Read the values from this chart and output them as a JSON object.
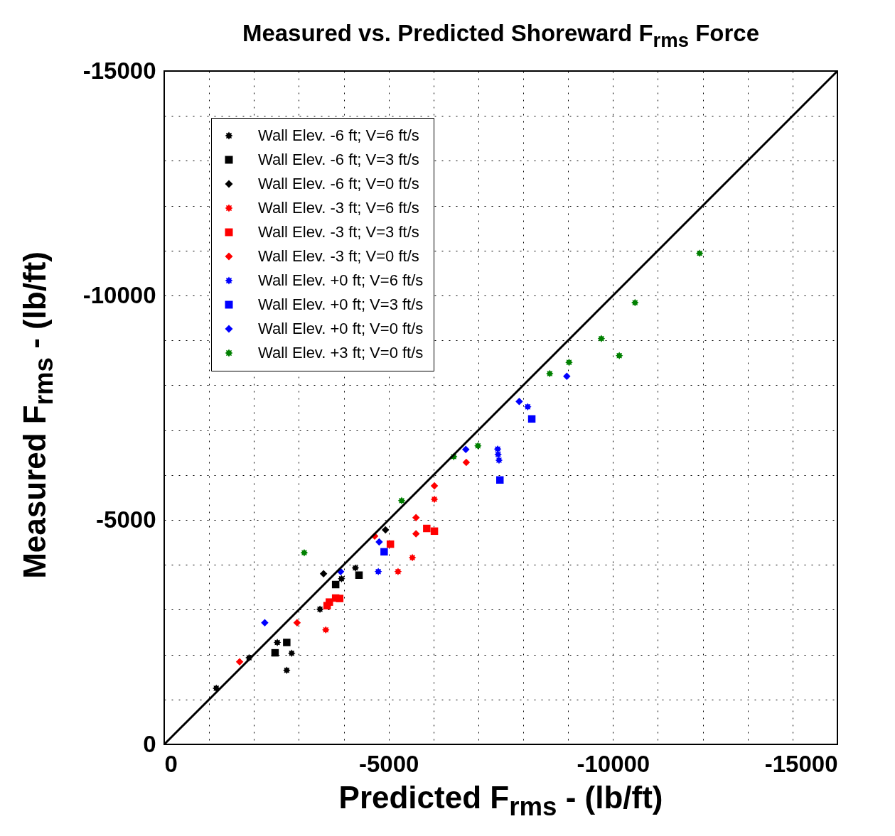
{
  "chart_data": {
    "type": "scatter",
    "title": "Measured vs. Predicted Shoreward F$_{rms}$ Force",
    "xlabel": "Predicted F$_{rms}$ - (lb/ft)",
    "ylabel": "Measured F$_{rms}$ - (lb/ft)",
    "xlim": [
      0,
      -15000
    ],
    "ylim": [
      0,
      -15000
    ],
    "xticks": [
      0,
      {
        "value": -1000,
        "label": null
      },
      {
        "value": -2000,
        "label": null
      },
      {
        "value": -3000,
        "label": null
      },
      {
        "value": -4000,
        "label": null
      },
      -5000,
      {
        "value": -6000,
        "label": null
      },
      {
        "value": -7000,
        "label": null
      },
      {
        "value": -8000,
        "label": null
      },
      {
        "value": -9000,
        "label": null
      },
      -10000,
      {
        "value": -11000,
        "label": null
      },
      {
        "value": -12000,
        "label": null
      },
      {
        "value": -13000,
        "label": null
      },
      {
        "value": -14000,
        "label": null
      },
      -15000
    ],
    "yticks": [
      0,
      {
        "value": -1000,
        "label": null
      },
      {
        "value": -2000,
        "label": null
      },
      {
        "value": -3000,
        "label": null
      },
      {
        "value": -4000,
        "label": null
      },
      -5000,
      {
        "value": -6000,
        "label": null
      },
      {
        "value": -7000,
        "label": null
      },
      {
        "value": -8000,
        "label": null
      },
      {
        "value": -9000,
        "label": null
      },
      -10000,
      {
        "value": -11000,
        "label": null
      },
      {
        "value": -12000,
        "label": null
      },
      {
        "value": -13000,
        "label": null
      },
      {
        "value": -14000,
        "label": null
      },
      -15000
    ],
    "grid": true,
    "legend": "top left",
    "series": [
      {
        "name": "Wall Elev. -6 ft; V=6 ft/s",
        "color": "#000000",
        "marker": "star",
        "x": [
          -1160,
          -1890,
          -2730,
          -2840,
          -2520,
          -3470,
          -4260,
          -3950
        ],
        "values": [
          -1250,
          -1930,
          -1650,
          -2030,
          -2270,
          -3010,
          -3930,
          -3690
        ]
      },
      {
        "name": "Wall Elev. -6 ft; V=3 ft/s",
        "color": "#000000",
        "marker": "square",
        "x": [
          -2470,
          -2730,
          -3820,
          -4340
        ],
        "values": [
          -2040,
          -2270,
          -3560,
          -3770
        ]
      },
      {
        "name": "Wall Elev. -6 ft; V=0 ft/s",
        "color": "#000000",
        "marker": "diamond",
        "x": [
          -3550,
          -4930
        ],
        "values": [
          -3800,
          -4780
        ]
      },
      {
        "name": "Wall Elev. -3 ft; V=6 ft/s",
        "color": "#ff0000",
        "marker": "star",
        "x": [
          -3600,
          -5210,
          -5530,
          -6020
        ],
        "values": [
          -2550,
          -3850,
          -4160,
          -5460
        ]
      },
      {
        "name": "Wall Elev. -3 ft; V=3 ft/s",
        "color": "#ff0000",
        "marker": "square",
        "x": [
          -3630,
          -3680,
          -3820,
          -3910,
          -5040,
          -5850,
          -6020
        ],
        "values": [
          -3090,
          -3170,
          -3260,
          -3250,
          -4460,
          -4810,
          -4750
        ]
      },
      {
        "name": "Wall Elev. -3 ft; V=0 ft/s",
        "color": "#ff0000",
        "marker": "diamond",
        "x": [
          -1680,
          -2960,
          -4690,
          -5610,
          -5610,
          -6020,
          -6730
        ],
        "values": [
          -1840,
          -2710,
          -4640,
          -5050,
          -4690,
          -5760,
          -6280
        ]
      },
      {
        "name": "Wall Elev. +0 ft; V=6 ft/s",
        "color": "#0000ff",
        "marker": "star",
        "x": [
          -4770,
          -7430,
          -7440,
          -7460,
          -8100
        ],
        "values": [
          -3850,
          -6580,
          -6460,
          -6330,
          -7520
        ]
      },
      {
        "name": "Wall Elev. +0 ft; V=3 ft/s",
        "color": "#0000ff",
        "marker": "square",
        "x": [
          -4900,
          -7480,
          -8190
        ],
        "values": [
          -4290,
          -5890,
          -7250
        ]
      },
      {
        "name": "Wall Elev. +0 ft; V=0 ft/s",
        "color": "#0000ff",
        "marker": "diamond",
        "x": [
          -2240,
          -3930,
          -4790,
          -6720,
          -7910,
          -8970
        ],
        "values": [
          -2710,
          -3850,
          -4510,
          -6570,
          -7640,
          -8200
        ]
      },
      {
        "name": "Wall Elev. +3 ft; V=0 ft/s",
        "color": "#008000",
        "marker": "star",
        "x": [
          -3120,
          -5290,
          -6450,
          -6990,
          -8590,
          -9020,
          -9740,
          -10140,
          -10490,
          -11930
        ],
        "values": [
          -4270,
          -5430,
          -6410,
          -6650,
          -8260,
          -8510,
          -9040,
          -8660,
          -9840,
          -10940
        ]
      },
      {
        "type": "line",
        "color": "#000000",
        "line_style": "solid",
        "x": [
          0,
          -15000
        ],
        "values": [
          0,
          -15000
        ]
      }
    ]
  }
}
